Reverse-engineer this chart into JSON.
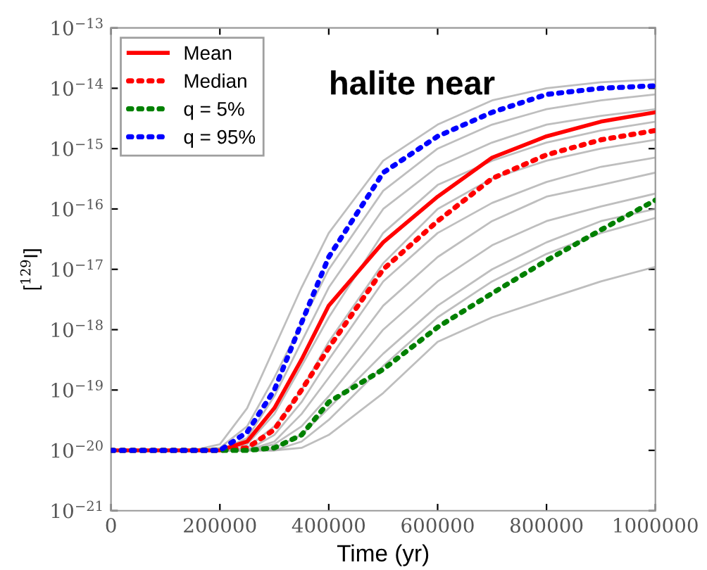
{
  "chart_data": {
    "type": "line",
    "xlabel": "Time (yr)",
    "ylabel": "[$^{129}$I]",
    "annotations": [
      "halite near"
    ],
    "x": [
      0,
      150000,
      200000,
      250000,
      300000,
      350000,
      400000,
      500000,
      600000,
      700000,
      800000,
      900000,
      1000000
    ],
    "xlim": [
      0,
      1000000
    ],
    "xticks": [
      0,
      200000,
      400000,
      600000,
      800000,
      1000000
    ],
    "ylim": [
      1e-21,
      1e-13
    ],
    "log": "y",
    "yticks": [
      {
        "value": 1e-21,
        "label": "10$^{−21}$"
      },
      {
        "value": 1e-20,
        "label": "10$^{−20}$"
      },
      {
        "value": 1e-19,
        "label": "10$^{−19}$"
      },
      {
        "value": 1e-18,
        "label": "10$^{−18}$"
      },
      {
        "value": 1e-17,
        "label": "10$^{−17}$"
      },
      {
        "value": 1e-16,
        "label": "10$^{−16}$"
      },
      {
        "value": 1e-15,
        "label": "10$^{−15}$"
      },
      {
        "value": 1e-14,
        "label": "10$^{−14}$"
      },
      {
        "value": 1e-13,
        "label": "10$^{−13}$"
      }
    ],
    "grid": false,
    "legend": "top left",
    "marker": "none",
    "series": [
      {
        "color": "#a8a8a8",
        "values": [
          1e-20,
          1e-20,
          1.26e-20,
          5e-20,
          5e-19,
          5e-18,
          4e-17,
          6.3e-16,
          2.5e-15,
          6.3e-15,
          1e-14,
          1.26e-14,
          1.4e-14
        ]
      },
      {
        "color": "#a8a8a8",
        "values": [
          1e-20,
          1e-20,
          1.1e-20,
          2.5e-20,
          1.6e-19,
          1.26e-18,
          1e-17,
          2e-16,
          1e-15,
          2.5e-15,
          4.5e-15,
          6.3e-15,
          7.9e-15
        ]
      },
      {
        "color": "#a8a8a8",
        "values": [
          1e-20,
          1e-20,
          1e-20,
          1.6e-20,
          7.9e-20,
          6.3e-19,
          5e-18,
          1e-16,
          5e-16,
          1.26e-15,
          2.5e-15,
          3.5e-15,
          4.5e-15
        ]
      },
      {
        "color": "#a8a8a8",
        "values": [
          1e-20,
          1e-20,
          1e-20,
          1.26e-20,
          4e-20,
          2.5e-19,
          1.6e-18,
          4e-17,
          2.5e-16,
          6.3e-16,
          1.26e-15,
          2e-15,
          2.8e-15
        ]
      },
      {
        "color": "#a8a8a8",
        "values": [
          1e-20,
          1e-20,
          1e-20,
          1.1e-20,
          2.5e-20,
          1e-19,
          6.3e-19,
          1.26e-17,
          1e-16,
          3.2e-16,
          6.3e-16,
          1e-15,
          1.4e-15
        ]
      },
      {
        "color": "#a8a8a8",
        "values": [
          1e-20,
          1e-20,
          1e-20,
          1e-20,
          1.8e-20,
          6.3e-20,
          3.2e-19,
          6.3e-18,
          4e-17,
          1.26e-16,
          2.8e-16,
          5e-16,
          7.1e-16
        ]
      },
      {
        "color": "#a8a8a8",
        "values": [
          1e-20,
          1e-20,
          1e-20,
          1e-20,
          1.4e-20,
          4e-20,
          1.6e-19,
          2.5e-18,
          1.6e-17,
          6.3e-17,
          1.6e-16,
          2.5e-16,
          4e-16
        ]
      },
      {
        "color": "#a8a8a8",
        "values": [
          1e-20,
          1e-20,
          1e-20,
          1e-20,
          1.26e-20,
          2.5e-20,
          7.9e-20,
          1e-18,
          6.3e-18,
          2.5e-17,
          6.3e-17,
          1.1e-16,
          1.8e-16
        ]
      },
      {
        "color": "#a8a8a8",
        "values": [
          1e-20,
          1e-20,
          1e-20,
          1e-20,
          1.1e-20,
          1.8e-20,
          5e-20,
          4e-19,
          2.5e-18,
          1e-17,
          2.8e-17,
          6.3e-17,
          1e-16
        ]
      },
      {
        "color": "#a8a8a8",
        "values": [
          1e-20,
          1e-20,
          1e-20,
          1e-20,
          1e-20,
          1.4e-20,
          3.2e-20,
          2.5e-19,
          1.6e-18,
          6.3e-18,
          1.8e-17,
          4e-17,
          7.1e-17
        ]
      },
      {
        "color": "#a8a8a8",
        "values": [
          1e-20,
          1e-20,
          1e-20,
          1e-20,
          1e-20,
          1.1e-20,
          1.8e-20,
          8.9e-20,
          6.3e-19,
          1.6e-18,
          3.2e-18,
          6.3e-18,
          1.1e-17
        ]
      },
      {
        "name": "Mean",
        "color": "#ff0000",
        "line_style": "solid",
        "values": [
          1e-20,
          1e-20,
          1e-20,
          1.4e-20,
          5e-20,
          3.2e-19,
          2.5e-18,
          2.8e-17,
          1.6e-16,
          7.1e-16,
          1.6e-15,
          2.8e-15,
          4e-15
        ]
      },
      {
        "name": "Median",
        "color": "#ff0000",
        "line_style": "dotted",
        "values": [
          1e-20,
          1e-20,
          1e-20,
          1.1e-20,
          2.2e-20,
          1e-19,
          5e-19,
          1e-17,
          6.3e-17,
          3.2e-16,
          7.9e-16,
          1.4e-15,
          2e-15
        ]
      },
      {
        "name": "q = 5%",
        "color": "#008000",
        "line_style": "dotted",
        "values": [
          1e-20,
          1e-20,
          1e-20,
          1e-20,
          1.1e-20,
          1.8e-20,
          6.3e-20,
          2.2e-19,
          1.1e-18,
          4e-18,
          1.4e-17,
          4.5e-17,
          1.4e-16
        ]
      },
      {
        "name": "q = 95%",
        "color": "#0000ff",
        "line_style": "dotted",
        "values": [
          1e-20,
          1e-20,
          1e-20,
          2e-20,
          1e-19,
          1.3e-18,
          1.6e-17,
          4e-16,
          1.6e-15,
          4e-15,
          7.9e-15,
          1e-14,
          1.1e-14
        ]
      }
    ]
  }
}
